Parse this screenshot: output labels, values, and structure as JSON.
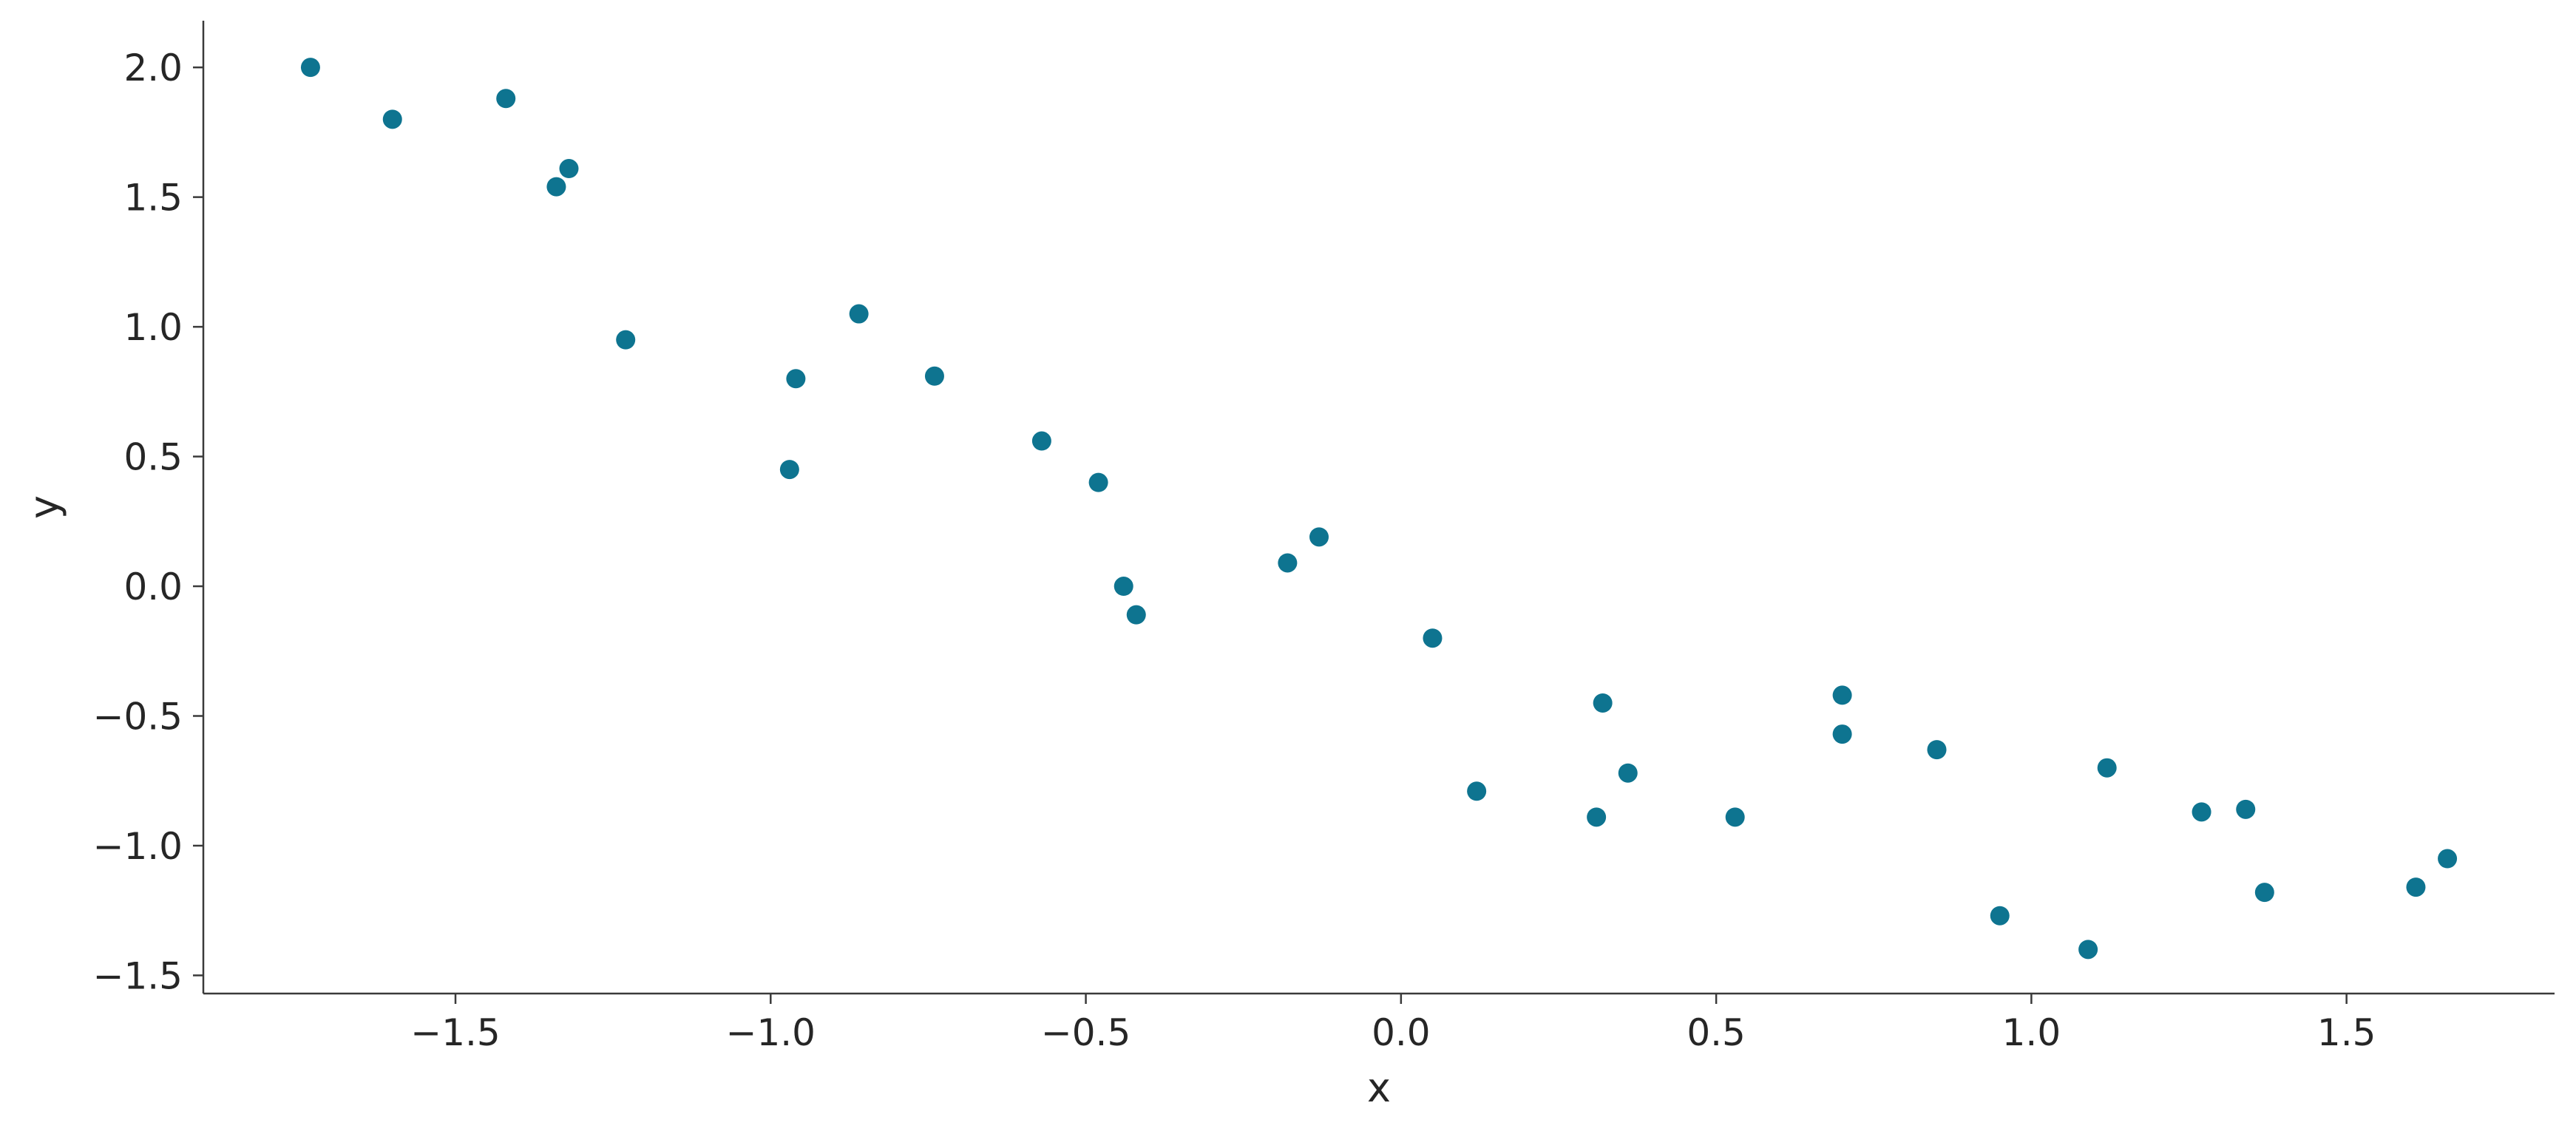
{
  "chart_data": {
    "type": "scatter",
    "title": "",
    "xlabel": "x",
    "ylabel": "y",
    "xlim": [
      -1.9,
      1.83
    ],
    "ylim": [
      -1.57,
      2.18
    ],
    "xticks": [
      -1.5,
      -1.0,
      -0.5,
      0.0,
      0.5,
      1.0,
      1.5
    ],
    "xtick_labels": [
      "−1.5",
      "−1.0",
      "−0.5",
      "0.0",
      "0.5",
      "1.0",
      "1.5"
    ],
    "yticks": [
      -1.5,
      -1.0,
      -0.5,
      0.0,
      0.5,
      1.0,
      1.5,
      2.0
    ],
    "ytick_labels": [
      "−1.5",
      "−1.0",
      "−0.5",
      "0.0",
      "0.5",
      "1.0",
      "1.5",
      "2.0"
    ],
    "grid": false,
    "legend": false,
    "color": "#0e7490",
    "points": [
      {
        "x": -1.73,
        "y": 2.0
      },
      {
        "x": -1.6,
        "y": 1.8
      },
      {
        "x": -1.42,
        "y": 1.88
      },
      {
        "x": -1.34,
        "y": 1.54
      },
      {
        "x": -1.32,
        "y": 1.61
      },
      {
        "x": -1.23,
        "y": 0.95
      },
      {
        "x": -0.97,
        "y": 0.45
      },
      {
        "x": -0.96,
        "y": 0.8
      },
      {
        "x": -0.86,
        "y": 1.05
      },
      {
        "x": -0.74,
        "y": 0.81
      },
      {
        "x": -0.57,
        "y": 0.56
      },
      {
        "x": -0.48,
        "y": 0.4
      },
      {
        "x": -0.44,
        "y": 0.0
      },
      {
        "x": -0.42,
        "y": -0.11
      },
      {
        "x": -0.18,
        "y": 0.09
      },
      {
        "x": -0.13,
        "y": 0.19
      },
      {
        "x": 0.05,
        "y": -0.2
      },
      {
        "x": 0.12,
        "y": -0.79
      },
      {
        "x": 0.31,
        "y": -0.89
      },
      {
        "x": 0.32,
        "y": -0.45
      },
      {
        "x": 0.36,
        "y": -0.72
      },
      {
        "x": 0.53,
        "y": -0.89
      },
      {
        "x": 0.7,
        "y": -0.42
      },
      {
        "x": 0.7,
        "y": -0.57
      },
      {
        "x": 0.85,
        "y": -0.63
      },
      {
        "x": 0.95,
        "y": -1.27
      },
      {
        "x": 1.09,
        "y": -1.4
      },
      {
        "x": 1.12,
        "y": -0.7
      },
      {
        "x": 1.27,
        "y": -0.87
      },
      {
        "x": 1.34,
        "y": -0.86
      },
      {
        "x": 1.37,
        "y": -1.18
      },
      {
        "x": 1.61,
        "y": -1.16
      },
      {
        "x": 1.66,
        "y": -1.05
      }
    ]
  }
}
